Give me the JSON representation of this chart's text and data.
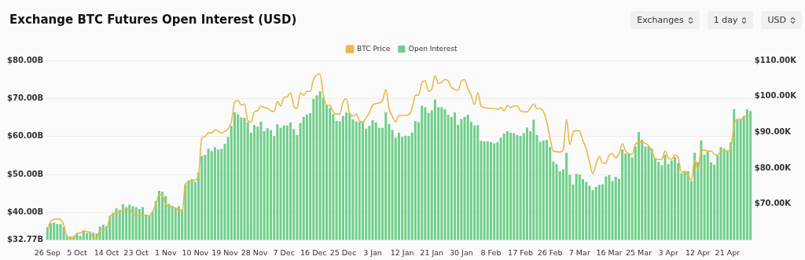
{
  "chart_data": {
    "type": "bar",
    "title": "Exchange BTC Futures Open Interest (USD)",
    "annotations": [
      "Exchanges",
      "1 day",
      "USD"
    ],
    "categories": [
      "26 Sep",
      null,
      null,
      null,
      null,
      null,
      null,
      null,
      null,
      "5 Oct",
      null,
      null,
      null,
      null,
      null,
      null,
      null,
      null,
      "14 Oct",
      null,
      null,
      null,
      null,
      null,
      null,
      null,
      null,
      "23 Oct",
      null,
      null,
      null,
      null,
      null,
      null,
      null,
      null,
      "1 Nov",
      null,
      null,
      null,
      null,
      null,
      null,
      null,
      null,
      "10 Nov",
      null,
      null,
      null,
      null,
      null,
      null,
      null,
      null,
      "19 Nov",
      null,
      null,
      null,
      null,
      null,
      null,
      null,
      null,
      "28 Nov",
      null,
      null,
      null,
      null,
      null,
      null,
      null,
      null,
      "7 Dec",
      null,
      null,
      null,
      null,
      null,
      null,
      null,
      null,
      "16 Dec",
      null,
      null,
      null,
      null,
      null,
      null,
      null,
      null,
      "25 Dec",
      null,
      null,
      null,
      null,
      null,
      null,
      null,
      null,
      "3 Jan",
      null,
      null,
      null,
      null,
      null,
      null,
      null,
      null,
      "12 Jan",
      null,
      null,
      null,
      null,
      null,
      null,
      null,
      null,
      "21 Jan",
      null,
      null,
      null,
      null,
      null,
      null,
      null,
      null,
      "30 Jan",
      null,
      null,
      null,
      null,
      null,
      null,
      null,
      null,
      "8 Feb",
      null,
      null,
      null,
      null,
      null,
      null,
      null,
      null,
      "17 Feb",
      null,
      null,
      null,
      null,
      null,
      null,
      null,
      null,
      "26 Feb",
      null,
      null,
      null,
      null,
      null,
      null,
      null,
      null,
      "7 Mar",
      null,
      null,
      null,
      null,
      null,
      null,
      null,
      null,
      "16 Mar",
      null,
      null,
      null,
      null,
      null,
      null,
      null,
      null,
      "25 Mar",
      null,
      null,
      null,
      null,
      null,
      null,
      null,
      null,
      "3 Apr",
      null,
      null,
      null,
      null,
      null,
      null,
      null,
      null,
      "12 Apr",
      null,
      null,
      null,
      null,
      null,
      null,
      null,
      null,
      "21 Apr",
      null,
      null,
      null,
      null,
      null,
      null,
      null
    ],
    "series": [
      {
        "name": "BTC Price",
        "type": "line",
        "axis": "y2",
        "color": "#e9b949",
        "values": [
          63.0,
          65.2,
          65.7,
          65.9,
          65.7,
          64.1,
          60.8,
          60.4,
          60.4,
          61.9,
          61.9,
          62.6,
          62.3,
          62.0,
          60.6,
          60.4,
          62.8,
          63.0,
          62.8,
          66.3,
          67.2,
          67.6,
          67.9,
          68.2,
          68.4,
          68.5,
          67.4,
          67.0,
          67.2,
          66.7,
          67.0,
          66.7,
          67.8,
          70.0,
          72.6,
          72.4,
          69.9,
          69.4,
          69.1,
          68.9,
          68.2,
          67.8,
          75.5,
          76.1,
          76.5,
          76.7,
          78.1,
          88.4,
          88.8,
          89.9,
          89.8,
          90.7,
          90.3,
          89.8,
          90.3,
          91.0,
          92.9,
          98.4,
          98.9,
          97.6,
          97.9,
          93.2,
          92.9,
          95.7,
          96.0,
          97.3,
          96.9,
          96.7,
          96.0,
          95.8,
          98.6,
          97.3,
          99.7,
          99.9,
          101.0,
          97.3,
          96.6,
          101.0,
          100.3,
          101.4,
          101.4,
          104.7,
          106.0,
          106.2,
          100.3,
          97.6,
          97.5,
          95.8,
          95.1,
          95.1,
          98.4,
          99.4,
          95.1,
          94.5,
          95.1,
          93.2,
          92.9,
          94.0,
          95.5,
          97.6,
          98.0,
          98.2,
          98.8,
          101.9,
          96.6,
          94.4,
          92.9,
          94.7,
          94.7,
          94.7,
          94.9,
          96.6,
          100.3,
          100.4,
          103.9,
          104.3,
          101.4,
          102.1,
          105.8,
          103.6,
          103.9,
          104.7,
          104.3,
          102.5,
          101.9,
          101.7,
          104.3,
          104.7,
          102.1,
          100.3,
          97.7,
          101.0,
          97.3,
          96.9,
          96.7,
          96.6,
          96.6,
          96.4,
          96.9,
          96.0,
          97.5,
          96.9,
          97.3,
          97.3,
          96.0,
          95.7,
          95.7,
          96.7,
          97.9,
          96.6,
          96.6,
          95.7,
          92.9,
          88.4,
          84.8,
          84.6,
          84.5,
          85.1,
          93.6,
          86.6,
          89.9,
          90.5,
          90.3,
          87.7,
          85.5,
          81.8,
          78.5,
          81.1,
          83.3,
          81.4,
          81.4,
          83.7,
          84.0,
          82.9,
          84.0,
          86.8,
          84.8,
          84.0,
          83.9,
          86.6,
          87.3,
          87.1,
          87.0,
          86.2,
          84.6,
          82.7,
          82.4,
          82.5,
          84.8,
          82.9,
          82.5,
          83.7,
          82.9,
          78.9,
          78.9,
          78.1,
          76.6,
          82.5,
          79.6,
          84.8,
          85.1,
          84.8,
          84.8,
          83.9,
          83.7,
          84.6,
          84.8,
          84.8,
          85.5,
          92.1,
          93.6,
          93.6,
          94.2,
          94.7,
          94.5
        ]
      },
      {
        "name": "Open Interest",
        "color": "#6fcf8a",
        "values": [
          36.2,
          37.2,
          37.4,
          37.0,
          37.0,
          36.2,
          34.0,
          33.7,
          33.8,
          34.3,
          33.9,
          35.2,
          34.6,
          35.0,
          34.7,
          34.5,
          36.3,
          36.8,
          36.4,
          39.2,
          39.9,
          41.1,
          40.7,
          42.2,
          41.4,
          42.1,
          41.7,
          41.4,
          40.9,
          41.4,
          39.5,
          39.2,
          40.2,
          43.0,
          45.7,
          45.5,
          44.3,
          42.3,
          41.8,
          41.2,
          41.7,
          40.9,
          47.4,
          48.5,
          48.8,
          48.1,
          50.6,
          54.9,
          55.2,
          56.8,
          56.2,
          57.2,
          56.6,
          56.7,
          58.1,
          59.9,
          62.8,
          66.4,
          65.9,
          65.0,
          64.9,
          63.8,
          61.0,
          63.0,
          62.6,
          63.9,
          61.4,
          62.2,
          61.7,
          60.1,
          63.2,
          62.3,
          62.9,
          62.9,
          63.7,
          61.9,
          60.4,
          63.6,
          65.2,
          65.8,
          66.1,
          69.9,
          70.8,
          71.9,
          70.3,
          68.3,
          67.5,
          65.9,
          64.1,
          64.0,
          65.4,
          66.3,
          66.2,
          64.5,
          64.0,
          63.8,
          64.1,
          62.1,
          62.8,
          64.3,
          63.7,
          62.3,
          62.3,
          66.4,
          63.3,
          61.7,
          59.7,
          61.0,
          59.9,
          60.2,
          60.1,
          61.1,
          64.1,
          63.8,
          68.1,
          67.7,
          66.2,
          66.9,
          69.7,
          67.7,
          67.7,
          67.2,
          65.7,
          65.1,
          66.3,
          63.1,
          64.6,
          65.2,
          65.7,
          63.9,
          62.9,
          63.0,
          58.9,
          58.7,
          58.7,
          58.5,
          58.2,
          58.5,
          59.7,
          60.8,
          61.4,
          61.0,
          60.9,
          60.4,
          60.1,
          60.9,
          62.4,
          61.4,
          64.4,
          60.4,
          58.6,
          59.0,
          59.1,
          57.2,
          53.4,
          52.8,
          50.8,
          51.4,
          55.7,
          49.9,
          47.4,
          50.2,
          50.0,
          48.8,
          48.1,
          47.1,
          45.9,
          46.8,
          47.3,
          47.4,
          49.5,
          49.9,
          48.3,
          49.4,
          48.9,
          56.6,
          55.5,
          55.4,
          54.5,
          57.4,
          61.2,
          59.2,
          57.4,
          57.5,
          56.8,
          54.3,
          53.3,
          52.4,
          55.2,
          52.8,
          53.7,
          54.6,
          53.0,
          50.3,
          51.0,
          50.9,
          48.3,
          55.7,
          53.3,
          59.0,
          55.2,
          56.1,
          53.2,
          52.6,
          55.0,
          57.2,
          56.8,
          56.1,
          58.5,
          67.2,
          64.5,
          64.5,
          65.4,
          67.2,
          66.7
        ]
      }
    ],
    "ylim": [
      32.77,
      80
    ],
    "yticks": [
      {
        "value": 32.77,
        "label": "$32.77B"
      },
      {
        "value": 40,
        "label": "$40.00B"
      },
      {
        "value": 50,
        "label": "$50.00B"
      },
      {
        "value": 60,
        "label": "$60.00B"
      },
      {
        "value": 70,
        "label": "$70.00B"
      },
      {
        "value": 80,
        "label": "$80.00B"
      }
    ],
    "y2lim": [
      60,
      110
    ],
    "y2ticks": [
      {
        "value": 60,
        "label": null
      },
      {
        "value": 70,
        "label": "$70.00K"
      },
      {
        "value": 80,
        "label": "$80.00K"
      },
      {
        "value": 90,
        "label": "$90.00K"
      },
      {
        "value": 100,
        "label": "$100.00K"
      },
      {
        "value": 110,
        "label": "$110.00K"
      }
    ],
    "grid": "y",
    "legend": "top"
  }
}
